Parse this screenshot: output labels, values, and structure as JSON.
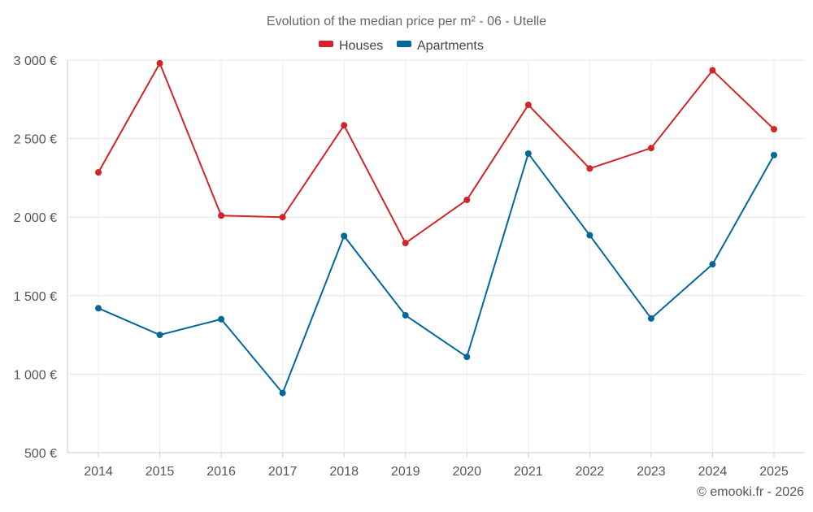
{
  "chart_data": {
    "type": "line",
    "title": "Evolution of the median price per m² - 06 - Utelle",
    "xlabel": "",
    "ylabel": "",
    "categories": [
      "2014",
      "2015",
      "2016",
      "2017",
      "2018",
      "2019",
      "2020",
      "2021",
      "2022",
      "2023",
      "2024",
      "2025"
    ],
    "ylim": [
      500,
      3000
    ],
    "yticks": [
      500,
      1000,
      1500,
      2000,
      2500,
      3000
    ],
    "ytick_labels": [
      "500 €",
      "1 000 €",
      "1 500 €",
      "2 000 €",
      "2 500 €",
      "3 000 €"
    ],
    "grid": true,
    "legend_position": "top-center",
    "series": [
      {
        "name": "Houses",
        "color": "#d0262a",
        "values": [
          2285,
          2980,
          2010,
          2000,
          2585,
          1835,
          2110,
          2715,
          2310,
          2440,
          2935,
          2560
        ]
      },
      {
        "name": "Apartments",
        "color": "#05679a",
        "values": [
          1420,
          1250,
          1350,
          880,
          1880,
          1375,
          1110,
          2405,
          1885,
          1355,
          1700,
          2395
        ]
      }
    ],
    "credit": "© emooki.fr - 2026"
  }
}
